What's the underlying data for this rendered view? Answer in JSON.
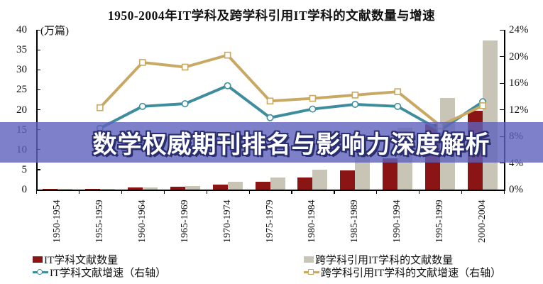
{
  "banner": {
    "text": "数学权威期刊排名与影响力深度解析",
    "bg_color": "rgba(94,98,188,0.8)",
    "text_color": "#ffffff",
    "outline_color": "#2a2e6e"
  },
  "chart_data": {
    "type": "bar+line combo",
    "title": "1950-2004年IT学科及跨学科引用IT学科的文献数量与增速",
    "left_axis": {
      "unit_label": "(万篇)",
      "range": [
        0,
        40
      ],
      "tick_step": 5,
      "ticks": [
        "0",
        "5",
        "10",
        "15",
        "20",
        "25",
        "30",
        "35",
        "40"
      ]
    },
    "right_axis": {
      "range": [
        0,
        24
      ],
      "tick_step": 4,
      "ticks": [
        "0%",
        "4%",
        "8%",
        "12%",
        "16%",
        "20%",
        "24%"
      ]
    },
    "grid": "off",
    "legend_position": "bottom-two-columns",
    "categories": [
      "1950-1954",
      "1955-1959",
      "1960-1964",
      "1965-1969",
      "1970-1974",
      "1975-1979",
      "1980-1984",
      "1985-1989",
      "1990-1994",
      "1995-1999",
      "2000-2004"
    ],
    "series": [
      {
        "name": "IT学科文献数量",
        "type": "bar",
        "axis": "left",
        "color": "#8b1414",
        "values": [
          0.05,
          0.2,
          0.5,
          0.7,
          1.2,
          2.0,
          3.0,
          4.8,
          7.8,
          16.3,
          19.7
        ]
      },
      {
        "name": "跨学科引用IT学科的文献数量",
        "type": "bar",
        "axis": "left",
        "color": "#c9c5b6",
        "values": [
          0.05,
          0.2,
          0.6,
          0.9,
          2.0,
          3.0,
          5.0,
          8.5,
          15.5,
          22.9,
          37.4
        ]
      },
      {
        "name": "IT学科文献增速（右轴）",
        "type": "line",
        "axis": "right",
        "color": "#3d8d9c",
        "marker": "circle",
        "values": [
          null,
          9.2,
          12.5,
          12.9,
          15.6,
          10.8,
          12.1,
          12.8,
          12.5,
          8.9,
          13.2
        ]
      },
      {
        "name": "跨学科引用IT学科的文献增速（右轴）",
        "type": "line",
        "axis": "right",
        "color": "#c8a863",
        "marker": "square",
        "values": [
          null,
          12.3,
          19.1,
          18.4,
          20.2,
          13.3,
          13.7,
          14.2,
          14.7,
          9.6,
          12.6
        ]
      }
    ],
    "legend": [
      {
        "label": "IT学科文献数量",
        "swatch": "bar",
        "color": "#8b1414"
      },
      {
        "label": "IT学科文献增速（右轴）",
        "swatch": "line-circle",
        "color": "#3d8d9c"
      },
      {
        "label": "跨学科引用IT学科的文献数量",
        "swatch": "bar",
        "color": "#c9c5b6"
      },
      {
        "label": "跨学科引用IT学科的文献增速（右轴）",
        "swatch": "line-square",
        "color": "#c8a863"
      }
    ]
  }
}
